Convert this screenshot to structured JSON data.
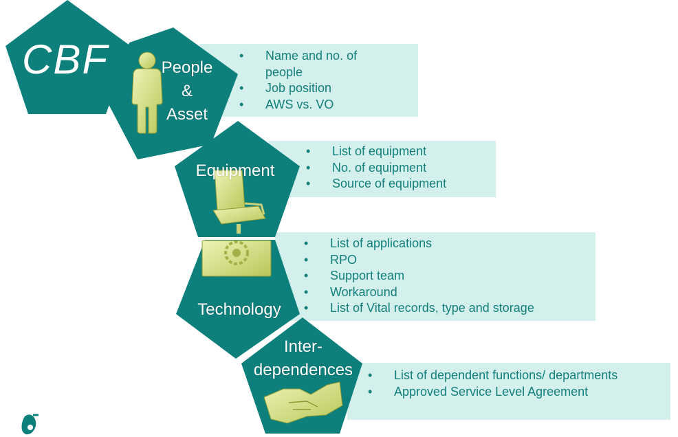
{
  "colors": {
    "teal": "#0e807c",
    "box": "#d3f0ec",
    "text": "#127f7b",
    "icon": "#d6df8a"
  },
  "cbf": {
    "title": "CBF",
    "icon": "cbf-pentagon"
  },
  "sections": [
    {
      "label_lines": [
        "People",
        "&",
        "Asset"
      ],
      "icon": "person-icon",
      "bullets": [
        "Name and no. of people",
        "Job position",
        "AWS vs. VO"
      ]
    },
    {
      "label_lines": [
        "Equipment"
      ],
      "icon": "office-chair-icon",
      "bullets": [
        "List of equipment",
        "No. of equipment",
        "Source of equipment"
      ]
    },
    {
      "label_lines": [
        "Technology"
      ],
      "icon": "gear-screen-icon",
      "bullets": [
        "List of applications",
        "RPO",
        "Support team",
        "Workaround",
        "List of Vital records, type and storage"
      ]
    },
    {
      "label_lines": [
        "Inter-",
        "dependences"
      ],
      "icon": "handshake-icon",
      "bullets": [
        "List of dependent functions/ departments",
        "Approved Service Level Agreement"
      ]
    }
  ],
  "logo": {
    "icon": "petronas-logo-icon"
  }
}
